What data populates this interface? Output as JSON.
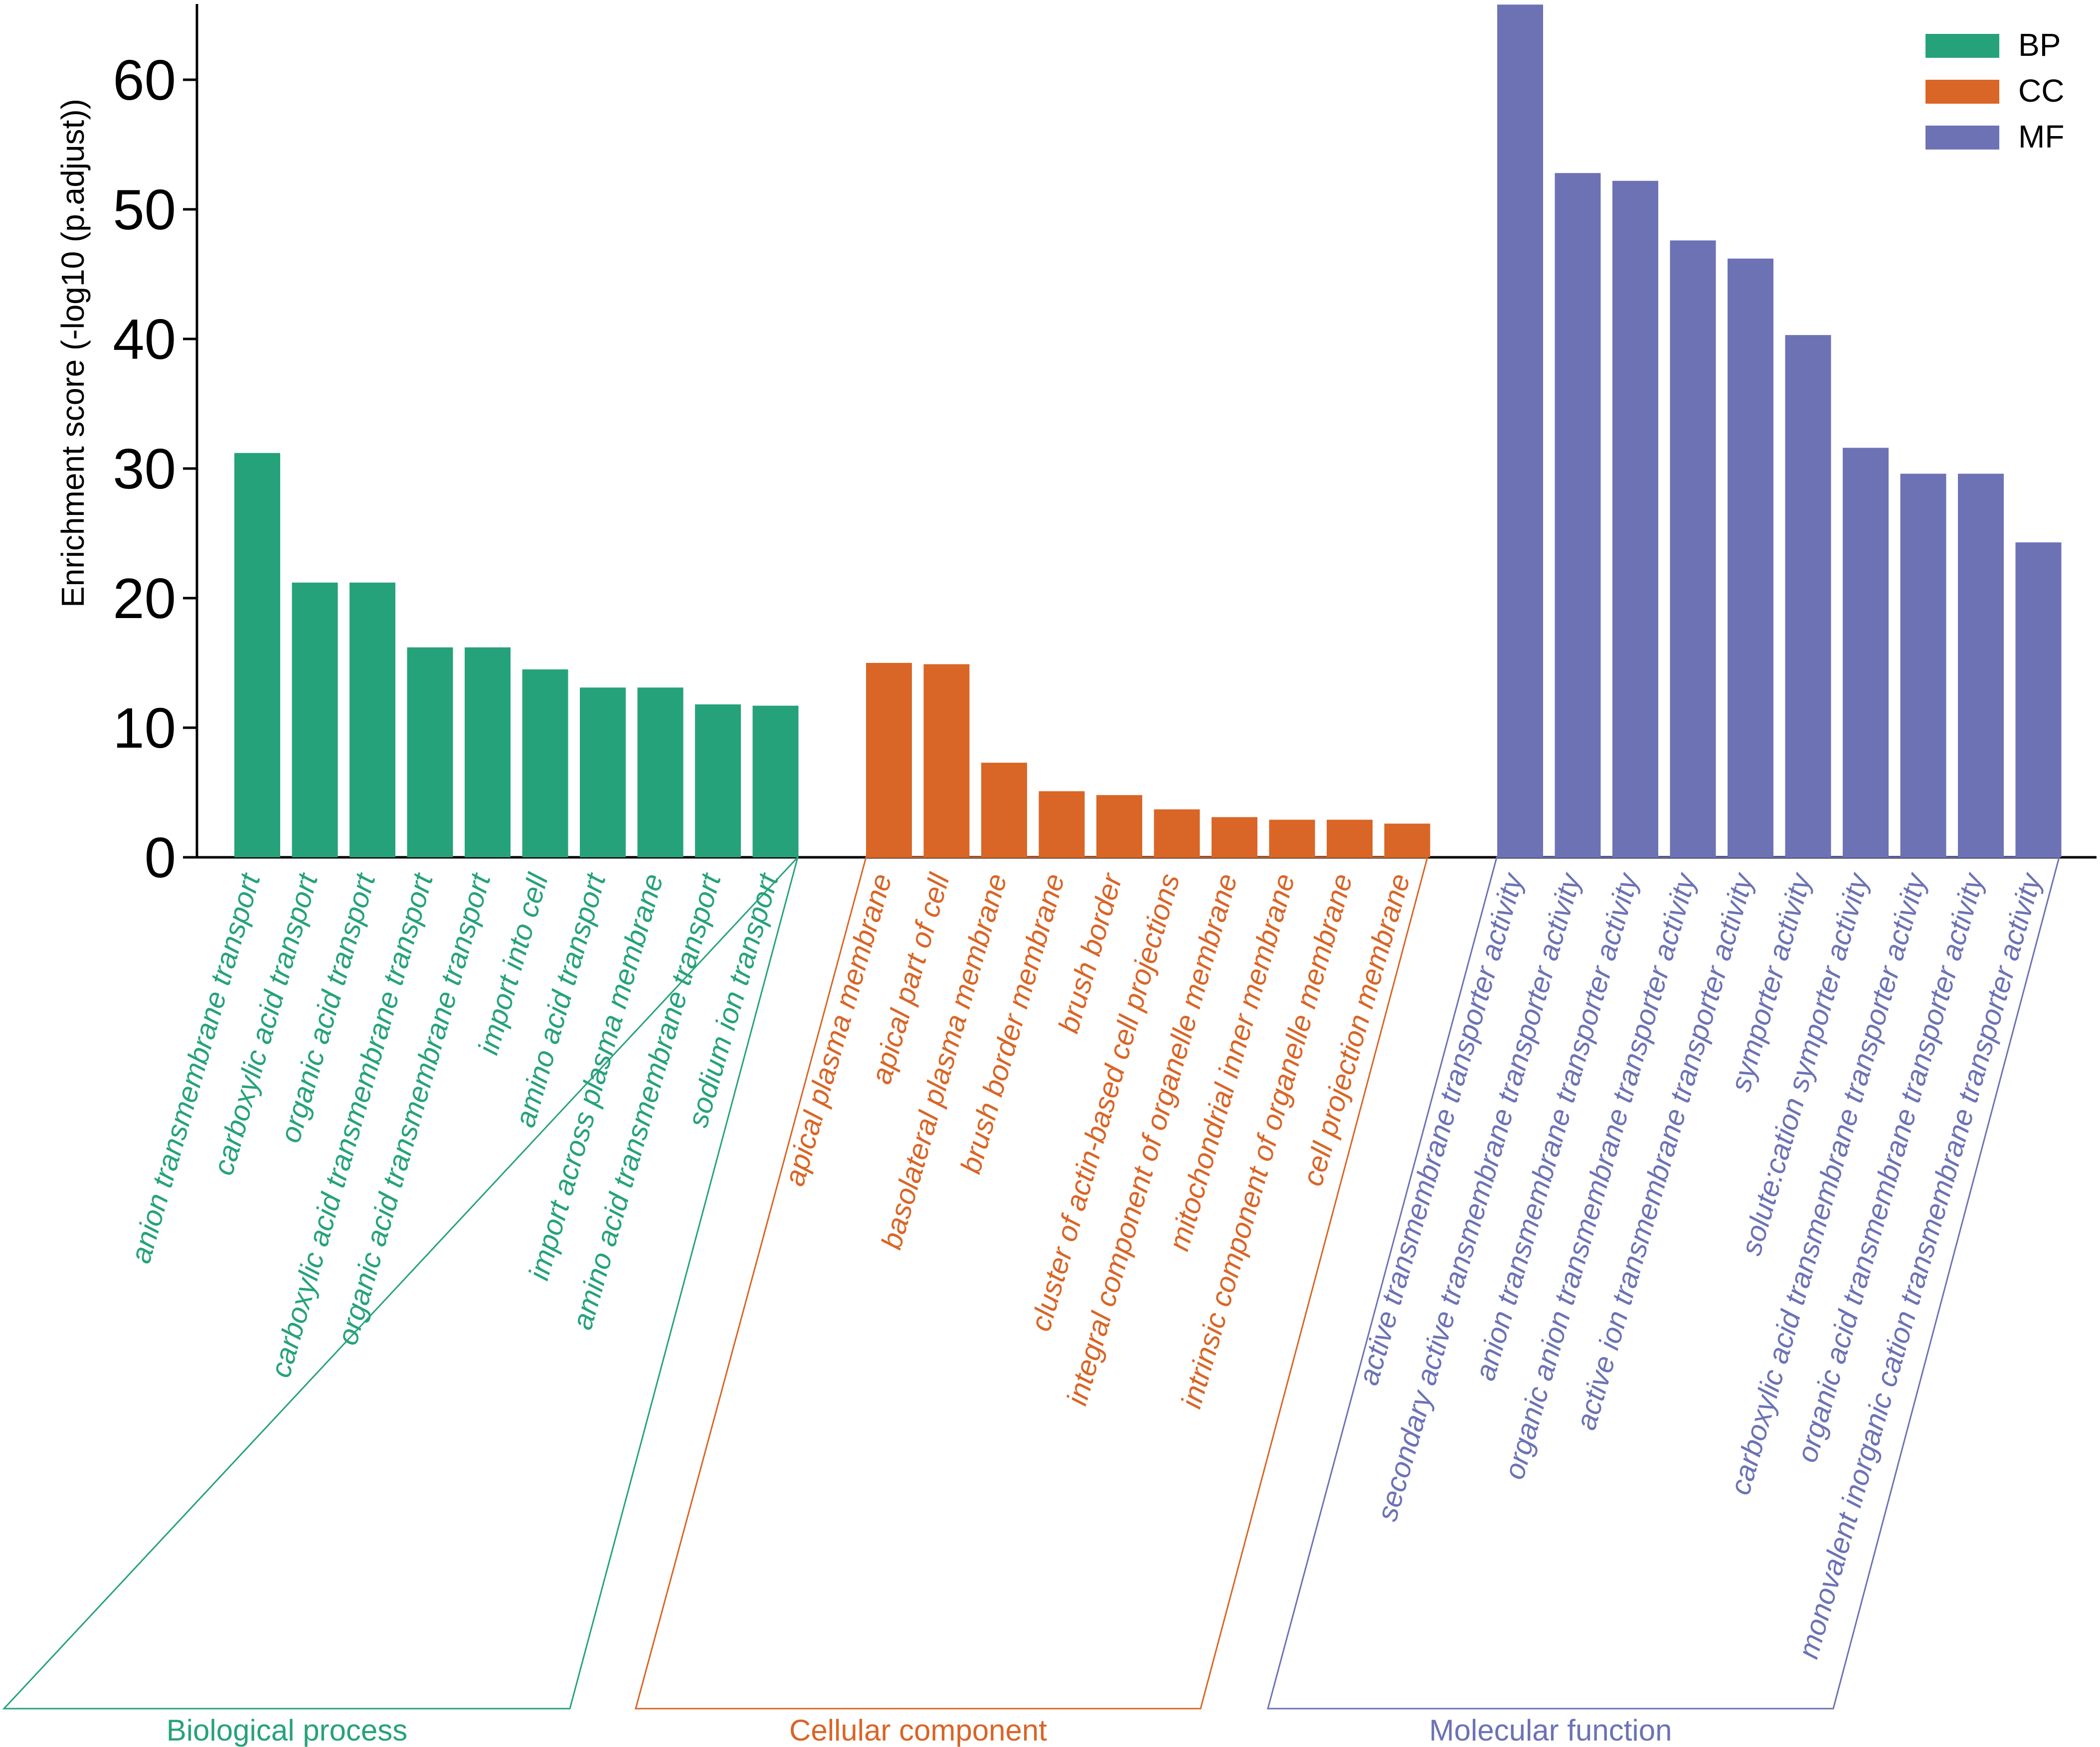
{
  "chart_data": {
    "type": "bar",
    "title": "",
    "xlabel": "",
    "ylabel": "Enrichment score (-log10 (p.adjust))",
    "ylim": [
      0,
      66
    ],
    "yticks": [
      0,
      10,
      20,
      30,
      40,
      50,
      60
    ],
    "grid": false,
    "legend_position": "top-right",
    "legend": [
      {
        "key": "BP",
        "label": "BP",
        "color": "#26a27b"
      },
      {
        "key": "CC",
        "label": "CC",
        "color": "#d96526"
      },
      {
        "key": "MF",
        "label": "MF",
        "color": "#6c72b4"
      }
    ],
    "groups": [
      {
        "key": "BP",
        "label": "Biological process",
        "color": "#26a27b",
        "categories": [
          "anion transmembrane transport",
          "carboxylic acid transport",
          "organic acid transport",
          "carboxylic acid transmembrane transport",
          "organic acid transmembrane transport",
          "import into cell",
          "amino acid transport",
          "import across plasma membrane",
          "amino acid transmembrane transport",
          "sodium ion transport"
        ],
        "values": [
          31.2,
          21.2,
          21.2,
          16.2,
          16.2,
          14.5,
          13.1,
          13.1,
          11.8,
          11.7
        ]
      },
      {
        "key": "CC",
        "label": "Cellular component",
        "color": "#d96526",
        "categories": [
          "apical plasma membrane",
          "apical part of cell",
          "basolateral plasma membrane",
          "brush border membrane",
          "brush border",
          "cluster of actin-based cell projections",
          "integral component of organelle membrane",
          "mitochondrial inner membrane",
          "intrinsic component of organelle membrane",
          "cell projection membrane"
        ],
        "values": [
          15.0,
          14.9,
          7.3,
          5.1,
          4.8,
          3.7,
          3.1,
          2.9,
          2.9,
          2.6
        ]
      },
      {
        "key": "MF",
        "label": "Molecular function",
        "color": "#6c72b4",
        "categories": [
          "active transmembrane transporter activity",
          "secondary active transmembrane transporter activity",
          "anion transmembrane transporter activity",
          "organic anion transmembrane transporter activity",
          "active ion transmembrane transporter activity",
          "symporter activity",
          "solute:cation symporter activity",
          "carboxylic acid transmembrane transporter activity",
          "organic acid transmembrane transporter activity",
          "monovalent inorganic cation transmembrane transporter activity"
        ],
        "values": [
          65.8,
          52.8,
          52.2,
          47.6,
          46.2,
          40.3,
          31.6,
          29.6,
          29.6,
          24.3
        ]
      }
    ]
  }
}
